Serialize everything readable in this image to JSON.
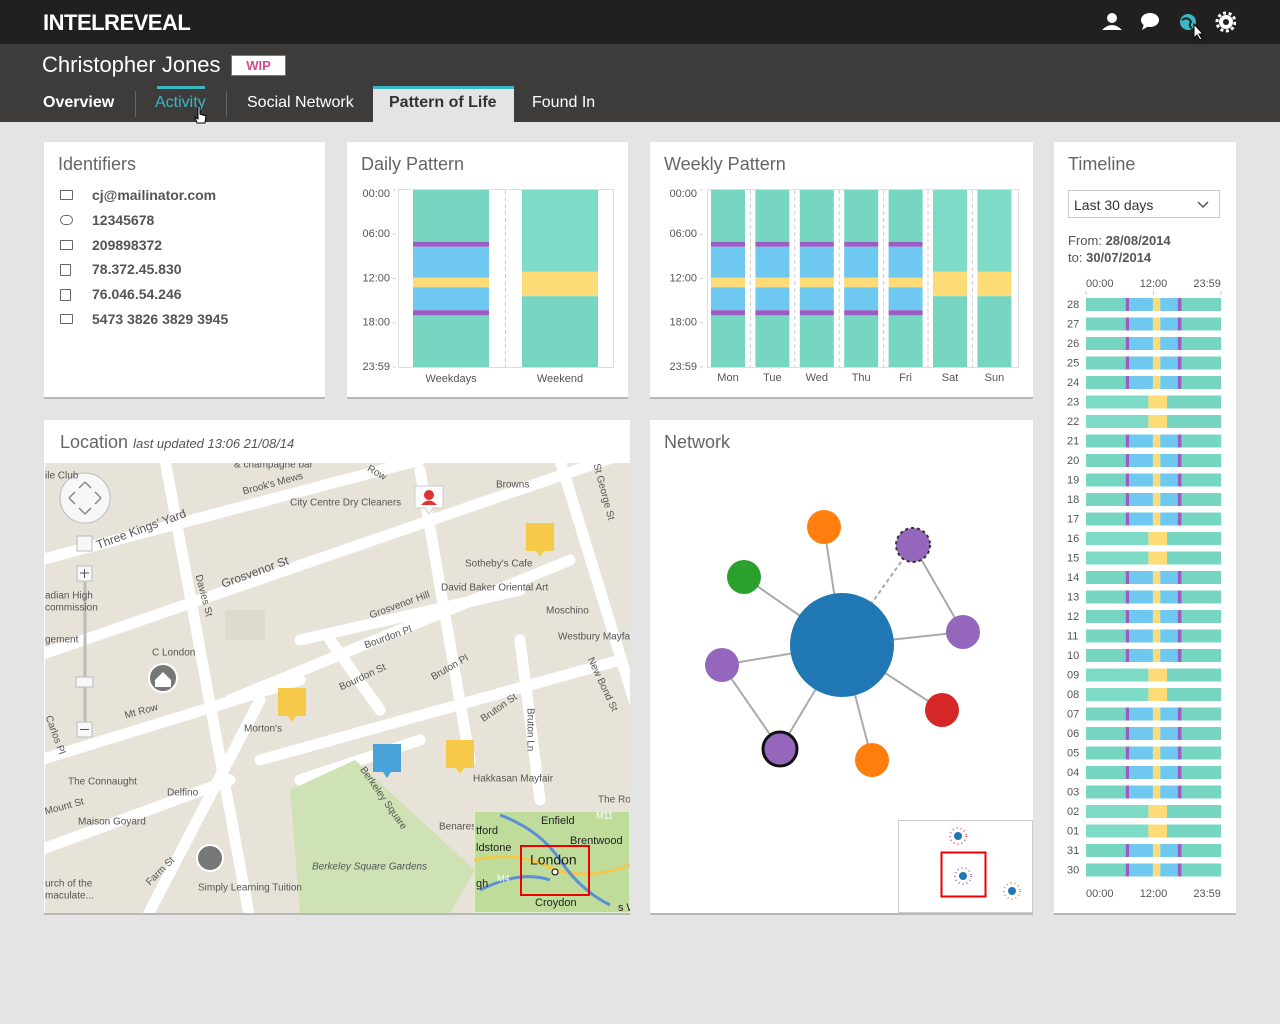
{
  "header": {
    "brand": "INTELREVEAL"
  },
  "profile": {
    "name": "Christopher Jones",
    "status": "WIP"
  },
  "tabs": [
    "Overview",
    "Activity",
    "Social Network",
    "Pattern of Life",
    "Found In"
  ],
  "identifiers": {
    "title": "Identifiers",
    "items": [
      "cj@mailinator.com",
      "12345678",
      "209898372",
      "78.372.45.830",
      "76.046.54.246",
      "5473 3826 3829 3945"
    ]
  },
  "daily_pattern": {
    "title": "Daily Pattern",
    "ylim": [
      0,
      24
    ],
    "yticks": [
      {
        "value": 0,
        "label": "00:00"
      },
      {
        "value": 6,
        "label": "06:00"
      },
      {
        "value": 12,
        "label": "12:00"
      },
      {
        "value": 18,
        "label": "18:00"
      },
      {
        "value": 23.98,
        "label": "23:59"
      }
    ],
    "series": [
      {
        "name": "Weekdays",
        "segments": [
          {
            "start": 0,
            "end": 7.05,
            "color": "#76d6c1"
          },
          {
            "start": 7.05,
            "end": 7.7,
            "color": "#9b5cc4"
          },
          {
            "start": 7.7,
            "end": 11.9,
            "color": "#6ec8ef"
          },
          {
            "start": 11.9,
            "end": 13.2,
            "color": "#fddc78"
          },
          {
            "start": 13.2,
            "end": 16.3,
            "color": "#6ec8ef"
          },
          {
            "start": 16.3,
            "end": 17,
            "color": "#9b5cc4"
          },
          {
            "start": 17,
            "end": 24,
            "color": "#76d6c1"
          }
        ]
      },
      {
        "name": "Weekend",
        "segments": [
          {
            "start": 0,
            "end": 11.1,
            "color": "#7ddbc7"
          },
          {
            "start": 11.1,
            "end": 14.4,
            "color": "#fddc78"
          },
          {
            "start": 14.4,
            "end": 24,
            "color": "#76d6c1"
          }
        ]
      }
    ]
  },
  "weekly_pattern": {
    "title": "Weekly Pattern",
    "ylim": [
      0,
      24
    ],
    "yticks": [
      {
        "value": 0,
        "label": "00:00"
      },
      {
        "value": 6,
        "label": "06:00"
      },
      {
        "value": 12,
        "label": "12:00"
      },
      {
        "value": 18,
        "label": "18:00"
      },
      {
        "value": 23.98,
        "label": "23:59"
      }
    ],
    "days": [
      {
        "name": "Mon",
        "weekend": false
      },
      {
        "name": "Tue",
        "weekend": false
      },
      {
        "name": "Wed",
        "weekend": false
      },
      {
        "name": "Thu",
        "weekend": false
      },
      {
        "name": "Fri",
        "weekend": false
      },
      {
        "name": "Sat",
        "weekend": true
      },
      {
        "name": "Sun",
        "weekend": true
      }
    ]
  },
  "timeline": {
    "title": "Timeline",
    "range": "Last 30 days",
    "from_label": "From:",
    "from": "28/08/2014",
    "to_label": "to:",
    "to": "30/07/2014",
    "xlim": [
      0,
      24
    ],
    "xticks": [
      {
        "value": 0,
        "label": "00:00"
      },
      {
        "value": 12,
        "label": "12:00"
      },
      {
        "value": 23.98,
        "label": "23:59"
      }
    ],
    "rows": [
      {
        "day": "28",
        "weekend": false
      },
      {
        "day": "27",
        "weekend": false
      },
      {
        "day": "26",
        "weekend": false
      },
      {
        "day": "25",
        "weekend": false
      },
      {
        "day": "24",
        "weekend": false
      },
      {
        "day": "23",
        "weekend": true
      },
      {
        "day": "22",
        "weekend": true
      },
      {
        "day": "21",
        "weekend": false
      },
      {
        "day": "20",
        "weekend": false
      },
      {
        "day": "19",
        "weekend": false
      },
      {
        "day": "18",
        "weekend": false
      },
      {
        "day": "17",
        "weekend": false
      },
      {
        "day": "16",
        "weekend": true
      },
      {
        "day": "15",
        "weekend": true
      },
      {
        "day": "14",
        "weekend": false
      },
      {
        "day": "13",
        "weekend": false
      },
      {
        "day": "12",
        "weekend": false
      },
      {
        "day": "11",
        "weekend": false
      },
      {
        "day": "10",
        "weekend": false
      },
      {
        "day": "09",
        "weekend": true
      },
      {
        "day": "08",
        "weekend": true
      },
      {
        "day": "07",
        "weekend": false
      },
      {
        "day": "06",
        "weekend": false
      },
      {
        "day": "05",
        "weekend": false
      },
      {
        "day": "04",
        "weekend": false
      },
      {
        "day": "03",
        "weekend": false
      },
      {
        "day": "02",
        "weekend": true
      },
      {
        "day": "01",
        "weekend": true
      },
      {
        "day": "31",
        "weekend": false
      },
      {
        "day": "30",
        "weekend": false
      }
    ]
  },
  "location": {
    "title": "Location",
    "updated": "last updated 13:06 21/08/14",
    "map_labels": [
      "& champagne bar",
      "Row",
      "Brook's Mews",
      "City Centre Dry Cleaners",
      "Browns",
      "St George St",
      "Three Kings' Yard",
      "Grosvenor St",
      "Sotheby's Cafe",
      "David Baker Oriental Art",
      "Davies St",
      "Grosvenor Hill",
      "Moschino",
      "Bourdon Pl",
      "Westbury Mayfai",
      "C London",
      "Bourdon St",
      "Bruton Pl",
      "New Bond St",
      "Mt Row",
      "Bruton St",
      "Morton's",
      "Bruton Ln",
      "Carlos Pl",
      "Hakkasan Mayfair",
      "The Connaught",
      "Delfino",
      "Mount St",
      "Maison Goyard",
      "Berkeley Square",
      "Benares",
      "The Roy",
      "Berkeley Square Gardens",
      "Farm St",
      "Simply Learning Tuition",
      "urch of the",
      "maculate...",
      "adian High",
      "commission",
      "gement",
      "ile Club"
    ],
    "inset_labels": [
      "Enfield",
      "Brentwood",
      "London",
      "Croydon",
      "M11",
      "M4",
      "tford",
      "ldstone",
      "gh",
      "s W"
    ]
  },
  "network": {
    "title": "Network"
  }
}
